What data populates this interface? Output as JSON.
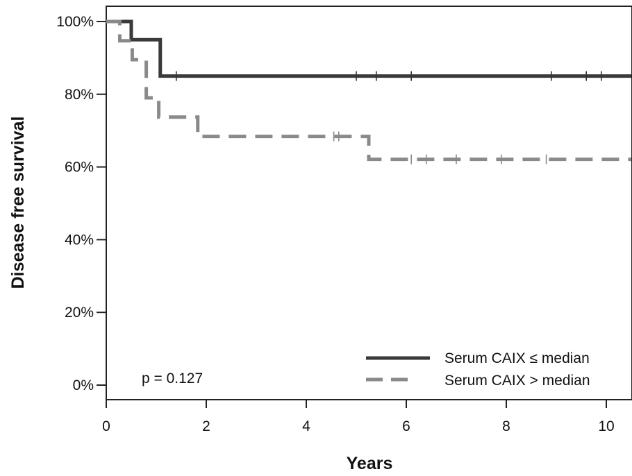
{
  "chart_data": {
    "type": "line",
    "subtype": "kaplan-meier",
    "xlabel": "Years",
    "ylabel": "Disease free survival",
    "xlim": [
      0,
      10.5
    ],
    "ylim": [
      0,
      1
    ],
    "x_ticks": [
      0,
      2,
      4,
      6,
      8,
      10
    ],
    "x_tick_labels": [
      "0",
      "2",
      "4",
      "6",
      "8",
      "10"
    ],
    "y_ticks": [
      0,
      0.2,
      0.4,
      0.6,
      0.8,
      1.0
    ],
    "y_tick_labels": [
      "0%",
      "20%",
      "40%",
      "60%",
      "80%",
      "100%"
    ],
    "grid": false,
    "legend_position": "bottom-right",
    "annotation": "p = 0.127",
    "series": [
      {
        "name": "Serum CAIX ≤ median",
        "color": "#3a3a3a",
        "style": "solid",
        "steps": [
          [
            0,
            1.0
          ],
          [
            0.5,
            0.95
          ],
          [
            1.08,
            0.85
          ]
        ],
        "end_x": 10.5,
        "censor_x": [
          1.4,
          5.0,
          5.4,
          6.1,
          8.9,
          9.6,
          9.9
        ]
      },
      {
        "name": "Serum CAIX > median",
        "color": "#8a8a8a",
        "style": "dashed",
        "steps": [
          [
            0,
            1.0
          ],
          [
            0.27,
            0.947
          ],
          [
            0.52,
            0.895
          ],
          [
            0.8,
            0.79
          ],
          [
            1.05,
            0.737
          ],
          [
            1.83,
            0.684
          ],
          [
            5.25,
            0.621
          ]
        ],
        "end_x": 10.5,
        "censor_x": [
          4.55,
          4.65,
          6.1,
          6.4,
          7.0,
          7.9,
          8.8
        ]
      }
    ]
  }
}
